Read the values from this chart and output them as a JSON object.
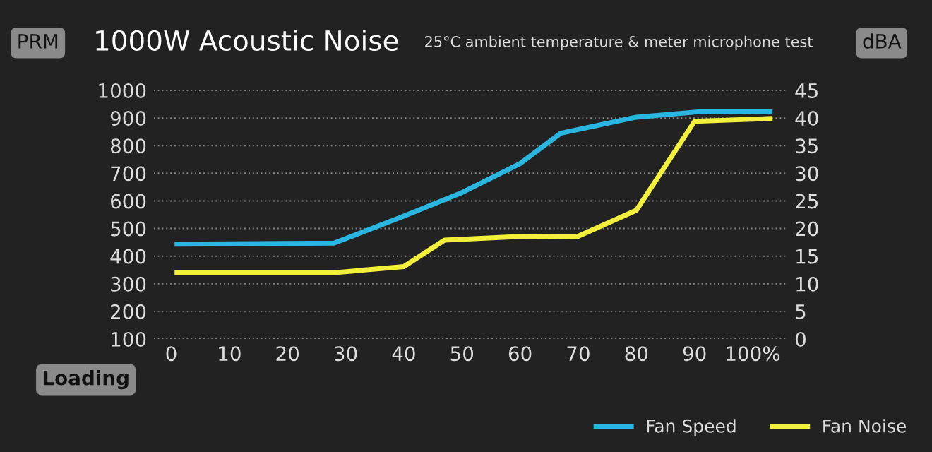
{
  "chart_data": {
    "type": "line",
    "title": "1000W Acoustic Noise",
    "subtitle": "25°C ambient temperature & meter microphone test",
    "xlabel": "Loading",
    "ylabel": "PRM",
    "y2label": "dBA",
    "xlim": [
      -3,
      106
    ],
    "xticks": [
      0,
      10,
      20,
      30,
      40,
      50,
      60,
      70,
      80,
      90,
      {
        "value": 100,
        "label": "100%"
      }
    ],
    "ylim": [
      100,
      1000
    ],
    "yticks": [
      100,
      200,
      300,
      400,
      500,
      600,
      700,
      800,
      900,
      1000
    ],
    "y2lim": [
      0,
      45
    ],
    "y2ticks": [
      0,
      5,
      10,
      15,
      20,
      25,
      30,
      35,
      40,
      45
    ],
    "grid": "y",
    "legend": "bottom right",
    "marker": "none",
    "line_style": "solid",
    "series": [
      {
        "name": "Fan Speed",
        "color": "#29b6e0",
        "x": [
          1,
          28,
          40,
          50,
          60,
          67,
          80,
          91,
          103
        ],
        "values": [
          443,
          447,
          545,
          630,
          735,
          845,
          903,
          923,
          923
        ]
      },
      {
        "name": "Fan Noise",
        "color": "#f2f03a",
        "axis": "y2",
        "x": [
          1,
          28,
          40,
          47,
          59,
          70,
          80,
          90,
          103
        ],
        "values": [
          12,
          12,
          13.1,
          17.9,
          18.5,
          18.6,
          23.3,
          39.4,
          39.9
        ]
      }
    ]
  }
}
